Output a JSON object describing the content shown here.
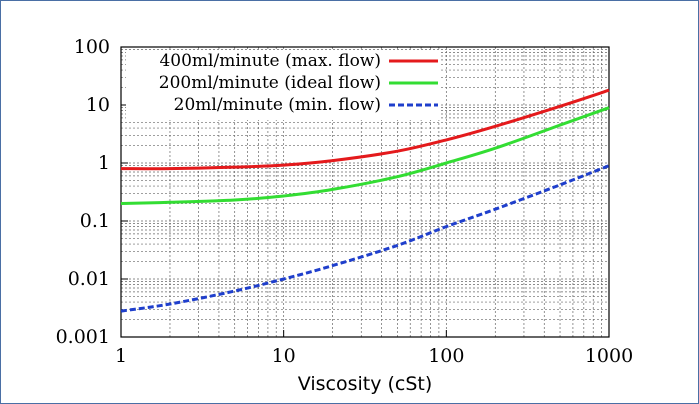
{
  "chart_data": {
    "type": "line",
    "xscale": "log",
    "yscale": "log",
    "xlim": [
      1,
      1000
    ],
    "ylim": [
      0.001,
      100
    ],
    "xlabel": "Viscosity (cSt)",
    "ylabel": "",
    "title": "",
    "grid": true,
    "legend_position": "top-left",
    "x_ticks": [
      "1",
      "10",
      "100",
      "1000"
    ],
    "y_ticks": [
      "0.001",
      "0.01",
      "0.1",
      "1",
      "10",
      "100"
    ],
    "x": [
      1,
      2,
      5,
      10,
      20,
      50,
      100,
      200,
      500,
      1000
    ],
    "series": [
      {
        "name": "400ml/minute (max. flow)",
        "color": "#e41a1c",
        "style": "solid",
        "values": [
          0.8,
          0.8,
          0.85,
          0.92,
          1.1,
          1.6,
          2.5,
          4.3,
          9.5,
          18
        ]
      },
      {
        "name": "200ml/minute (ideal flow)",
        "color": "#33dd33",
        "style": "solid",
        "values": [
          0.2,
          0.21,
          0.23,
          0.27,
          0.35,
          0.58,
          1.0,
          1.8,
          4.5,
          9.0
        ]
      },
      {
        "name": "20ml/minute (min. flow)",
        "color": "#1f3fcc",
        "style": "dashed",
        "values": [
          0.0028,
          0.0037,
          0.0062,
          0.01,
          0.017,
          0.038,
          0.08,
          0.16,
          0.42,
          0.9
        ]
      }
    ]
  }
}
